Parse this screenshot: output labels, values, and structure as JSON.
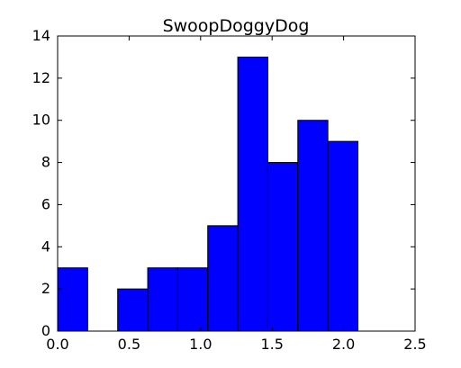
{
  "chart_data": {
    "type": "bar",
    "title": "SwoopDoggyDog",
    "xlabel": "",
    "ylabel": "",
    "xlim": [
      0,
      2.5
    ],
    "ylim": [
      0,
      14
    ],
    "grid": false,
    "bins": [
      {
        "x0": 0.0,
        "x1": 0.21,
        "count": 3
      },
      {
        "x0": 0.21,
        "x1": 0.42,
        "count": 0
      },
      {
        "x0": 0.42,
        "x1": 0.63,
        "count": 2
      },
      {
        "x0": 0.63,
        "x1": 0.84,
        "count": 3
      },
      {
        "x0": 0.84,
        "x1": 1.05,
        "count": 3
      },
      {
        "x0": 1.05,
        "x1": 1.26,
        "count": 5
      },
      {
        "x0": 1.26,
        "x1": 1.47,
        "count": 13
      },
      {
        "x0": 1.47,
        "x1": 1.68,
        "count": 8
      },
      {
        "x0": 1.68,
        "x1": 1.89,
        "count": 10
      },
      {
        "x0": 1.89,
        "x1": 2.1,
        "count": 9
      }
    ],
    "x_ticks": [
      "0.0",
      "0.5",
      "1.0",
      "1.5",
      "2.0",
      "2.5"
    ],
    "y_ticks": [
      "0",
      "2",
      "4",
      "6",
      "8",
      "10",
      "12",
      "14"
    ],
    "colors": {
      "bar_fill": "#0000ff",
      "bar_edge": "#000000",
      "axes": "#000000"
    }
  }
}
